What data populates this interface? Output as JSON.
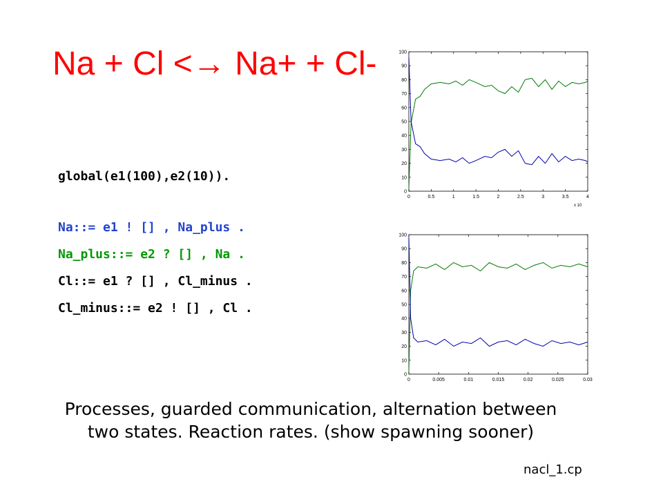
{
  "slide": {
    "title": "Na + Cl <→ Na+ + Cl-",
    "code": {
      "line1": "global(e1(100),e2(10)).",
      "line2": "Na::= e1 ! [] , Na_plus .",
      "line3": "Na_plus::= e2 ? [] , Na .",
      "line4": "Cl::= e1 ? [] , Cl_minus .",
      "line5": "Cl_minus::= e2 ! [] , Cl ."
    },
    "caption": "Processes, guarded communication, alternation between two states. Reaction rates. (show spawning sooner)",
    "filename": "nacl_1.cp"
  },
  "colors": {
    "title": "#ff0000",
    "green_series": "#007a00",
    "blue_series": "#0000aa"
  },
  "chart_data": [
    {
      "type": "line",
      "xlim": [
        0,
        4
      ],
      "ylim": [
        0,
        100
      ],
      "x_ticks": [
        "0",
        "0.5",
        "1",
        "1.5",
        "2",
        "2.5",
        "3",
        "3.5",
        "4"
      ],
      "y_ticks": [
        "0",
        "10",
        "20",
        "30",
        "40",
        "50",
        "60",
        "70",
        "80",
        "90",
        "100"
      ],
      "x_multiplier": "x 10",
      "series": [
        {
          "color": "#007a00",
          "x": [
            0,
            0.05,
            0.15,
            0.25,
            0.35,
            0.5,
            0.7,
            0.9,
            1.05,
            1.2,
            1.35,
            1.5,
            1.7,
            1.85,
            2.0,
            2.15,
            2.3,
            2.45,
            2.6,
            2.75,
            2.9,
            3.05,
            3.2,
            3.35,
            3.5,
            3.65,
            3.8,
            3.95,
            4.0
          ],
          "y": [
            2,
            49,
            66,
            68,
            73,
            77,
            78,
            77,
            79,
            76,
            80,
            78,
            75,
            76,
            72,
            70,
            75,
            71,
            80,
            81,
            75,
            80,
            73,
            79,
            75,
            78,
            77,
            78,
            79
          ]
        },
        {
          "color": "#0000aa",
          "x": [
            0,
            0.05,
            0.15,
            0.25,
            0.35,
            0.5,
            0.7,
            0.9,
            1.05,
            1.2,
            1.35,
            1.5,
            1.7,
            1.85,
            2.0,
            2.15,
            2.3,
            2.45,
            2.6,
            2.75,
            2.9,
            3.05,
            3.2,
            3.35,
            3.5,
            3.65,
            3.8,
            3.95,
            4.0
          ],
          "y": [
            96,
            50,
            34,
            32,
            27,
            23,
            22,
            23,
            21,
            24,
            20,
            22,
            25,
            24,
            28,
            30,
            25,
            29,
            20,
            19,
            25,
            20,
            27,
            21,
            25,
            22,
            23,
            22,
            21
          ]
        }
      ]
    },
    {
      "type": "line",
      "xlim": [
        0,
        0.03
      ],
      "ylim": [
        0,
        100
      ],
      "x_ticks": [
        "0",
        "0.005",
        "0.01",
        "0.015",
        "0.02",
        "0.025",
        "0.03"
      ],
      "y_ticks": [
        "0",
        "10",
        "20",
        "30",
        "40",
        "50",
        "60",
        "70",
        "80",
        "90",
        "100"
      ],
      "series": [
        {
          "color": "#007a00",
          "x": [
            0,
            0.0003,
            0.0008,
            0.0015,
            0.003,
            0.0045,
            0.006,
            0.0075,
            0.009,
            0.0105,
            0.012,
            0.0135,
            0.015,
            0.0165,
            0.018,
            0.0195,
            0.021,
            0.0225,
            0.024,
            0.0255,
            0.027,
            0.0285,
            0.03
          ],
          "y": [
            2,
            60,
            74,
            77,
            76,
            79,
            75,
            80,
            77,
            78,
            74,
            80,
            77,
            76,
            79,
            75,
            78,
            80,
            76,
            78,
            77,
            79,
            77
          ]
        },
        {
          "color": "#0000aa",
          "x": [
            0,
            0.0003,
            0.0008,
            0.0015,
            0.003,
            0.0045,
            0.006,
            0.0075,
            0.009,
            0.0105,
            0.012,
            0.0135,
            0.015,
            0.0165,
            0.018,
            0.0195,
            0.021,
            0.0225,
            0.024,
            0.0255,
            0.027,
            0.0285,
            0.03
          ],
          "y": [
            98,
            40,
            26,
            23,
            24,
            21,
            25,
            20,
            23,
            22,
            26,
            20,
            23,
            24,
            21,
            25,
            22,
            20,
            24,
            22,
            23,
            21,
            23
          ]
        }
      ]
    }
  ]
}
